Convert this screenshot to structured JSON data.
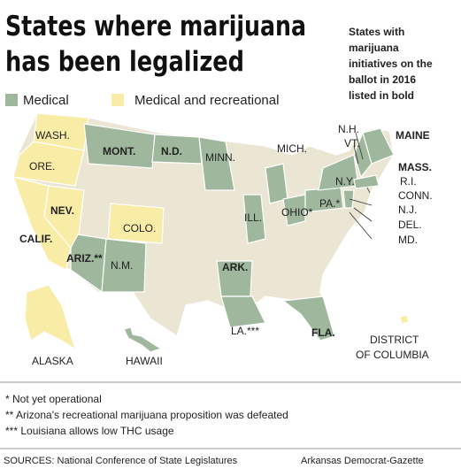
{
  "title": [
    "States where marijuana",
    "has been legalized"
  ],
  "side_note": [
    "States with",
    "marijuana",
    "initiatives on the",
    "ballot in 2016",
    "listed in bold"
  ],
  "legend": [
    {
      "label": "Medical",
      "color": "#9fb89d"
    },
    {
      "label": "Medical and recreational",
      "color": "#f8eca6"
    }
  ],
  "map_labels": [
    "WASH.",
    "ORE.",
    "CALIF.",
    "NEV.",
    "MONT.",
    "N.D.",
    "MINN.",
    "MICH.",
    "COLO.",
    "ARIZ.**",
    "N.M.",
    "ILL.",
    "ARK.",
    "LA.***",
    "FLA.",
    "OHIO*",
    "PA.*",
    "N.Y.",
    "N.H.",
    "VT.",
    "MAINE",
    "MASS.",
    "R.I.",
    "CONN.",
    "N.J.",
    "DEL.",
    "MD.",
    "ALASKA",
    "HAWAII",
    "DISTRICT",
    "OF COLUMBIA"
  ],
  "footnotes": [
    "* Not yet operational",
    "** Arizona's recreational marijuana proposition was defeated",
    "*** Louisiana allows low THC usage"
  ],
  "sources": "SOURCES: National Conference of State Legislatures",
  "credit": "Arkansas Democrat-Gazette"
}
